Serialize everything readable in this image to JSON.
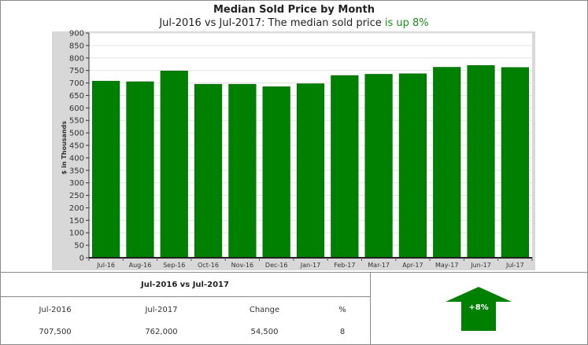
{
  "header": {
    "title": "Median Sold Price by Month",
    "subtitle_prefix": "Jul-2016 vs Jul-2017: The median sold price ",
    "subtitle_highlight": "is up 8%"
  },
  "colors": {
    "bar": "#008000",
    "bar_edge": "#005a00",
    "plot_bg": "#ffffff",
    "frame_bg": "#d8d8d8",
    "highlight": "#1e8c1e"
  },
  "chart_data": {
    "type": "bar",
    "title": "Median Sold Price by Month",
    "ylabel": "$ in Thousands",
    "xlabel": "",
    "ylim": [
      0,
      900
    ],
    "yticks": [
      0,
      50,
      100,
      150,
      200,
      250,
      300,
      350,
      400,
      450,
      500,
      550,
      600,
      650,
      700,
      750,
      800,
      850,
      900
    ],
    "grid": true,
    "categories": [
      "Jul-16",
      "Aug-16",
      "Sep-16",
      "Oct-16",
      "Nov-16",
      "Dec-16",
      "Jan-17",
      "Feb-17",
      "Mar-17",
      "Apr-17",
      "May-17",
      "Jun-17",
      "Jul-17"
    ],
    "values": [
      707.5,
      705,
      748,
      695,
      695,
      685,
      697,
      730,
      735,
      737,
      763,
      770,
      762
    ]
  },
  "summary": {
    "title": "Jul-2016 vs Jul-2017",
    "headers": [
      "Jul-2016",
      "Jul-2017",
      "Change",
      "%"
    ],
    "values": [
      "707,500",
      "762,000",
      "54,500",
      "8"
    ],
    "arrow_label": "+8%",
    "arrow_icon": "up-arrow-icon"
  }
}
